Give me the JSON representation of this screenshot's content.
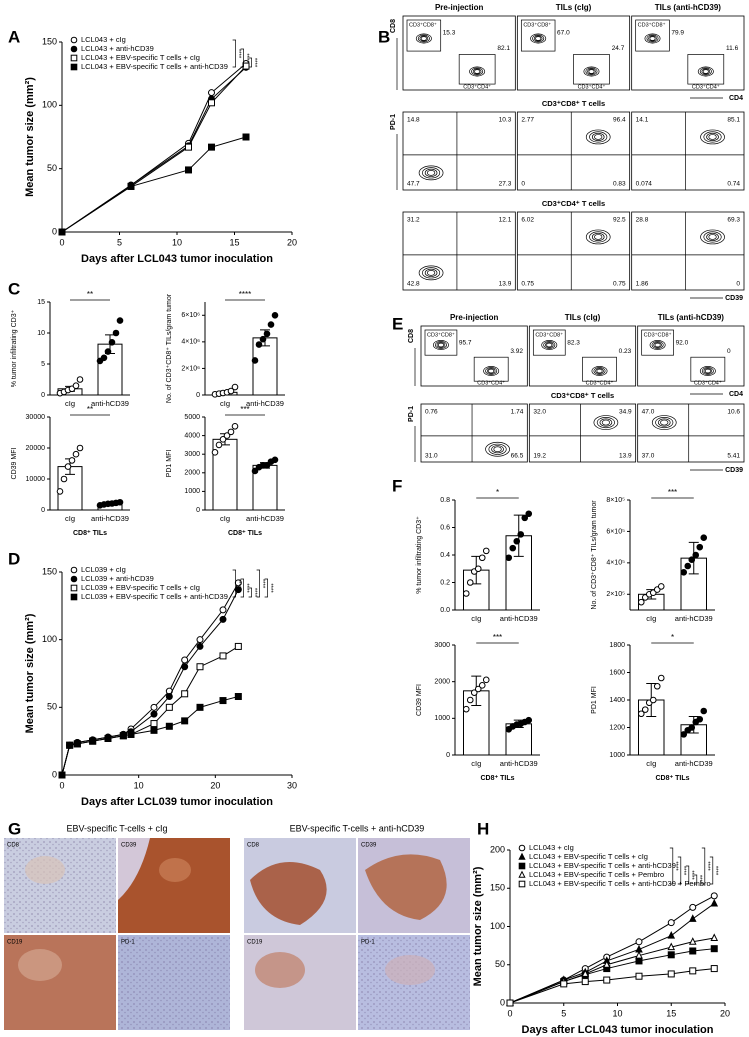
{
  "panel_labels": [
    "A",
    "B",
    "C",
    "D",
    "E",
    "F",
    "G",
    "H"
  ],
  "chart_data": [
    {
      "type": "line",
      "xlabel": "Days after LCL043 tumor inoculation",
      "ylabel": "Mean tumor size (mm²)",
      "x": [
        0,
        6,
        11,
        13,
        16
      ],
      "xlim": [
        0,
        20
      ],
      "xticks": [
        0,
        5,
        10,
        15,
        20
      ],
      "ylim": [
        0,
        150
      ],
      "yticks": [
        0,
        50,
        100,
        150
      ],
      "series": [
        {
          "name": "LCL043 + cIg",
          "color": "#000000",
          "marker": "circle",
          "filled": false,
          "values": [
            0,
            37,
            70,
            110,
            133
          ]
        },
        {
          "name": "LCL043 + anti-hCD39",
          "color": "#000000",
          "marker": "circle",
          "filled": true,
          "values": [
            0,
            37,
            68,
            105,
            130
          ]
        },
        {
          "name": "LCL043 + EBV-specific T cells + cIg",
          "color": "#000000",
          "marker": "square",
          "filled": false,
          "values": [
            0,
            36,
            67,
            102,
            131
          ]
        },
        {
          "name": "LCL043 + EBV-specific T cells + anti-hCD39",
          "color": "#000000",
          "marker": "square",
          "filled": true,
          "values": [
            0,
            36,
            49,
            67,
            75
          ]
        }
      ],
      "annotations": [
        "****",
        "****",
        "****"
      ]
    },
    {
      "type": "line",
      "xlabel": "Days after LCL039 tumor inoculation",
      "ylabel": "Mean tumor size (mm²)",
      "x": [
        0,
        1,
        2,
        4,
        6,
        8,
        9,
        12,
        14,
        16,
        18,
        21,
        23
      ],
      "xlim": [
        0,
        30
      ],
      "xticks": [
        0,
        10,
        20,
        30
      ],
      "ylim": [
        0,
        150
      ],
      "yticks": [
        0,
        50,
        100,
        150
      ],
      "series": [
        {
          "name": "LCL039 + cIg",
          "color": "#000000",
          "marker": "circle",
          "filled": false,
          "values": [
            0,
            22,
            24,
            26,
            28,
            30,
            34,
            50,
            62,
            85,
            100,
            122,
            142
          ]
        },
        {
          "name": "LCL039 + anti-hCD39",
          "color": "#000000",
          "marker": "circle",
          "filled": true,
          "values": [
            0,
            22,
            24,
            26,
            28,
            30,
            32,
            45,
            58,
            80,
            95,
            115,
            137
          ]
        },
        {
          "name": "LCL039 + EBV-specific T cells + cIg",
          "color": "#000000",
          "marker": "square",
          "filled": false,
          "values": [
            0,
            22,
            23,
            25,
            27,
            29,
            30,
            38,
            50,
            60,
            80,
            88,
            95
          ]
        },
        {
          "name": "LCL039 + EBV-specific T cells + anti-hCD39",
          "color": "#000000",
          "marker": "square",
          "filled": true,
          "values": [
            0,
            22,
            23,
            25,
            27,
            29,
            30,
            33,
            36,
            40,
            50,
            55,
            58
          ]
        }
      ],
      "annotations": [
        "****",
        "****",
        "****",
        "****",
        "****"
      ]
    },
    {
      "type": "line",
      "xlabel": "Days after LCL043 tumor inoculation",
      "ylabel": "Mean tumor size (mm²)",
      "x": [
        0,
        5,
        7,
        9,
        12,
        15,
        17,
        19
      ],
      "xlim": [
        0,
        20
      ],
      "xticks": [
        0,
        5,
        10,
        15,
        20
      ],
      "ylim": [
        0,
        200
      ],
      "yticks": [
        0,
        50,
        100,
        150,
        200
      ],
      "series": [
        {
          "name": "LCL043 + cIg",
          "color": "#000000",
          "marker": "circle",
          "filled": false,
          "values": [
            0,
            30,
            45,
            60,
            80,
            105,
            125,
            140
          ]
        },
        {
          "name": "LCL043 + EBV-specific T cells + cIg",
          "color": "#000000",
          "marker": "triangle",
          "filled": true,
          "values": [
            0,
            30,
            40,
            55,
            70,
            88,
            110,
            130
          ]
        },
        {
          "name": "LCL043 + EBV-specific T cells + anti-hCD39",
          "color": "#000000",
          "marker": "square",
          "filled": true,
          "values": [
            0,
            28,
            37,
            45,
            55,
            63,
            68,
            71
          ]
        },
        {
          "name": "LCL043 + EBV-specific T cells + Pembro",
          "color": "#000000",
          "marker": "triangle",
          "filled": false,
          "values": [
            0,
            28,
            38,
            50,
            62,
            73,
            80,
            85
          ]
        },
        {
          "name": "LCL043 + EBV-specific T cells + anti-hCD39 + Pembro",
          "color": "#000000",
          "marker": "square",
          "filled": false,
          "values": [
            0,
            25,
            28,
            30,
            35,
            38,
            42,
            45
          ]
        }
      ],
      "annotations": [
        "****",
        "****",
        "****",
        "****",
        "****",
        "****"
      ]
    },
    {
      "type": "bar",
      "ylabel": "% tumor infiltrating CD3⁺",
      "categories": [
        "cIg",
        "anti-hCD39"
      ],
      "values": [
        1,
        8.2
      ],
      "errors": [
        0.4,
        1.5
      ],
      "points": [
        [
          0.3,
          0.5,
          0.8,
          1.0,
          1.5,
          2.5
        ],
        [
          5.5,
          6,
          7,
          8.5,
          10,
          12
        ]
      ],
      "point_colors": [
        "#ffffff",
        "#000000"
      ],
      "color": "#ffffff",
      "ylim": [
        0,
        15
      ],
      "yticks": [
        0,
        5,
        10,
        15
      ],
      "annotation": "**"
    },
    {
      "type": "bar",
      "ylabel": "No. of CD3⁺CD8⁺ TILs/gram tumor",
      "categories": [
        "cIg",
        "anti-hCD39"
      ],
      "values": [
        200000,
        4300000
      ],
      "errors": [
        100000,
        600000
      ],
      "points": [
        [
          50000,
          100000,
          150000,
          200000,
          300000,
          600000
        ],
        [
          2600000,
          3800000,
          4200000,
          4600000,
          5300000,
          6000000
        ]
      ],
      "point_colors": [
        "#ffffff",
        "#000000"
      ],
      "color": "#ffffff",
      "ylim": [
        0,
        7000000
      ],
      "yticks": [
        0,
        {
          "value": 2000000,
          "label": "2×10⁶"
        },
        {
          "value": 4000000,
          "label": "4×10⁶"
        },
        {
          "value": 6000000,
          "label": "6×10⁶"
        }
      ],
      "annotation": "****"
    },
    {
      "type": "bar",
      "ylabel": "CD39 MFI",
      "xlabel": "CD8⁺ TILs",
      "categories": [
        "cIg",
        "anti-hCD39"
      ],
      "values": [
        14000,
        2000
      ],
      "errors": [
        2500,
        300
      ],
      "points": [
        [
          6000,
          10000,
          14000,
          16000,
          18000,
          20000
        ],
        [
          1500,
          1800,
          2000,
          2100,
          2300,
          2500
        ]
      ],
      "point_colors": [
        "#ffffff",
        "#000000"
      ],
      "color": "#ffffff",
      "ylim": [
        0,
        30000
      ],
      "yticks": [
        0,
        10000,
        20000,
        30000
      ],
      "annotation": "**"
    },
    {
      "type": "bar",
      "ylabel": "PD1 MFI",
      "xlabel": "CD8⁺ TILs",
      "categories": [
        "cIg",
        "anti-hCD39"
      ],
      "values": [
        3800,
        2400
      ],
      "errors": [
        300,
        150
      ],
      "points": [
        [
          3100,
          3500,
          3800,
          4000,
          4200,
          4500
        ],
        [
          2100,
          2300,
          2400,
          2400,
          2600,
          2700
        ]
      ],
      "point_colors": [
        "#ffffff",
        "#000000"
      ],
      "color": "#ffffff",
      "ylim": [
        0,
        5000
      ],
      "yticks": [
        0,
        1000,
        2000,
        3000,
        4000,
        5000
      ],
      "annotation": "***"
    },
    {
      "type": "bar",
      "ylabel": "% tumor infiltrating CD3⁺",
      "categories": [
        "cIg",
        "anti-hCD39"
      ],
      "values": [
        0.29,
        0.54
      ],
      "errors": [
        0.1,
        0.15
      ],
      "points": [
        [
          0.12,
          0.2,
          0.28,
          0.3,
          0.38,
          0.43
        ],
        [
          0.38,
          0.45,
          0.5,
          0.55,
          0.67,
          0.7
        ]
      ],
      "point_colors": [
        "#ffffff",
        "#000000"
      ],
      "color": "#ffffff",
      "ylim": [
        0,
        0.8
      ],
      "yticks": [
        {
          "value": 0,
          "label": "0.0"
        },
        {
          "value": 0.2,
          "label": "0.2"
        },
        {
          "value": 0.4,
          "label": "0.4"
        },
        {
          "value": 0.6,
          "label": "0.6"
        },
        {
          "value": 0.8,
          "label": "0.8"
        }
      ],
      "annotation": "*"
    },
    {
      "type": "bar",
      "ylabel": "No. of CD3⁺CD8⁺ TILs/gram tumor",
      "categories": [
        "cIg",
        "anti-hCD39"
      ],
      "values": [
        200000,
        430000
      ],
      "errors": [
        30000,
        100000
      ],
      "points": [
        [
          150000,
          180000,
          200000,
          210000,
          230000,
          250000
        ],
        [
          340000,
          380000,
          420000,
          450000,
          500000,
          560000
        ]
      ],
      "point_colors": [
        "#ffffff",
        "#000000"
      ],
      "color": "#ffffff",
      "ylim": [
        100000,
        800000
      ],
      "yticks": [
        {
          "value": 200000,
          "label": "2×10⁵"
        },
        {
          "value": 400000,
          "label": "4×10⁵"
        },
        {
          "value": 600000,
          "label": "6×10⁵"
        },
        {
          "value": 800000,
          "label": "8×10⁵"
        }
      ],
      "annotation": "***"
    },
    {
      "type": "bar",
      "ylabel": "CD39 MFI",
      "xlabel": "CD8⁺ TILs",
      "categories": [
        "cIg",
        "anti-hCD39"
      ],
      "values": [
        1750,
        850
      ],
      "errors": [
        400,
        100
      ],
      "points": [
        [
          1250,
          1500,
          1700,
          1800,
          1900,
          2050
        ],
        [
          700,
          780,
          830,
          850,
          900,
          950
        ]
      ],
      "point_colors": [
        "#ffffff",
        "#000000"
      ],
      "color": "#ffffff",
      "ylim": [
        0,
        3000
      ],
      "yticks": [
        0,
        1000,
        2000,
        3000
      ],
      "annotation": "***"
    },
    {
      "type": "bar",
      "ylabel": "PD1 MFI",
      "xlabel": "CD8⁺ TILs",
      "categories": [
        "cIg",
        "anti-hCD39"
      ],
      "values": [
        1400,
        1220
      ],
      "errors": [
        120,
        60
      ],
      "points": [
        [
          1300,
          1330,
          1380,
          1400,
          1500,
          1560
        ],
        [
          1150,
          1180,
          1200,
          1240,
          1260,
          1320
        ]
      ],
      "point_colors": [
        "#ffffff",
        "#000000"
      ],
      "color": "#ffffff",
      "ylim": [
        1000,
        1800
      ],
      "yticks": [
        1000,
        1200,
        1400,
        1600,
        1800
      ],
      "annotation": "*"
    }
  ],
  "flow_b": {
    "headers": [
      "Pre-injection",
      "TILs (cIg)",
      "TILs (anti-hCD39)"
    ],
    "rows": [
      {
        "y_label": "CD8",
        "x_label": "CD4",
        "columns": [
          {
            "labels": [
              "CD3⁺CD8⁺",
              "CD3⁺CD4⁺"
            ],
            "values": [
              "15.3",
              "82.1"
            ]
          },
          {
            "labels": [
              "CD3⁺CD8⁺",
              "CD3⁺CD4⁺"
            ],
            "values": [
              "67.0",
              "24.7"
            ]
          },
          {
            "labels": [
              "CD3⁺CD8⁺",
              "CD3⁺CD4⁺"
            ],
            "values": [
              "79.9",
              "11.6"
            ]
          }
        ]
      },
      {
        "title": "CD3⁺CD8⁺ T cells",
        "y_label": "PD-1",
        "quadrants": [
          [
            "14.8",
            "10.3",
            "47.7",
            "27.3"
          ],
          [
            "2.77",
            "96.4",
            "0",
            "0.83"
          ],
          [
            "14.1",
            "85.1",
            "0.074",
            "0.74"
          ]
        ]
      },
      {
        "title": "CD3⁺CD4⁺ T cells",
        "x_label": "CD39",
        "quadrants": [
          [
            "31.2",
            "12.1",
            "42.8",
            "13.9"
          ],
          [
            "6.02",
            "92.5",
            "0.75",
            "0.75"
          ],
          [
            "28.8",
            "69.3",
            "1.86",
            "0"
          ]
        ]
      }
    ]
  },
  "flow_e": {
    "headers": [
      "Pre-injection",
      "TILs (cIg)",
      "TILs (anti-hCD39)"
    ],
    "rows": [
      {
        "y_label": "CD8",
        "x_label": "CD4",
        "columns": [
          {
            "labels": [
              "CD3⁺CD8⁺",
              "CD3⁺CD4⁺"
            ],
            "values": [
              "95.7",
              "3.92"
            ]
          },
          {
            "labels": [
              "CD3⁺CD8⁺",
              "CD3⁺CD4⁺"
            ],
            "values": [
              "82.3",
              "0.23"
            ]
          },
          {
            "labels": [
              "CD3⁺CD8⁺",
              "CD3⁺CD4⁺"
            ],
            "values": [
              "92.0",
              "0"
            ]
          }
        ]
      },
      {
        "title": "CD3⁺CD8⁺ T cells",
        "y_label": "PD-1",
        "x_label": "CD39",
        "quadrants": [
          [
            "0.76",
            "1.74",
            "31.0",
            "66.5"
          ],
          [
            "32.0",
            "34.9",
            "19.2",
            "13.9"
          ],
          [
            "47.0",
            "10.6",
            "37.0",
            "5.41"
          ]
        ]
      }
    ]
  },
  "ihc_g": {
    "titles": [
      "EBV-specific T-cells + cIg",
      "EBV-specific T-cells + anti-hCD39"
    ],
    "stains": [
      [
        "CD8",
        "CD39",
        "CD19",
        "PD-1"
      ],
      [
        "CD8",
        "CD39",
        "CD19",
        "PD-1"
      ]
    ]
  }
}
